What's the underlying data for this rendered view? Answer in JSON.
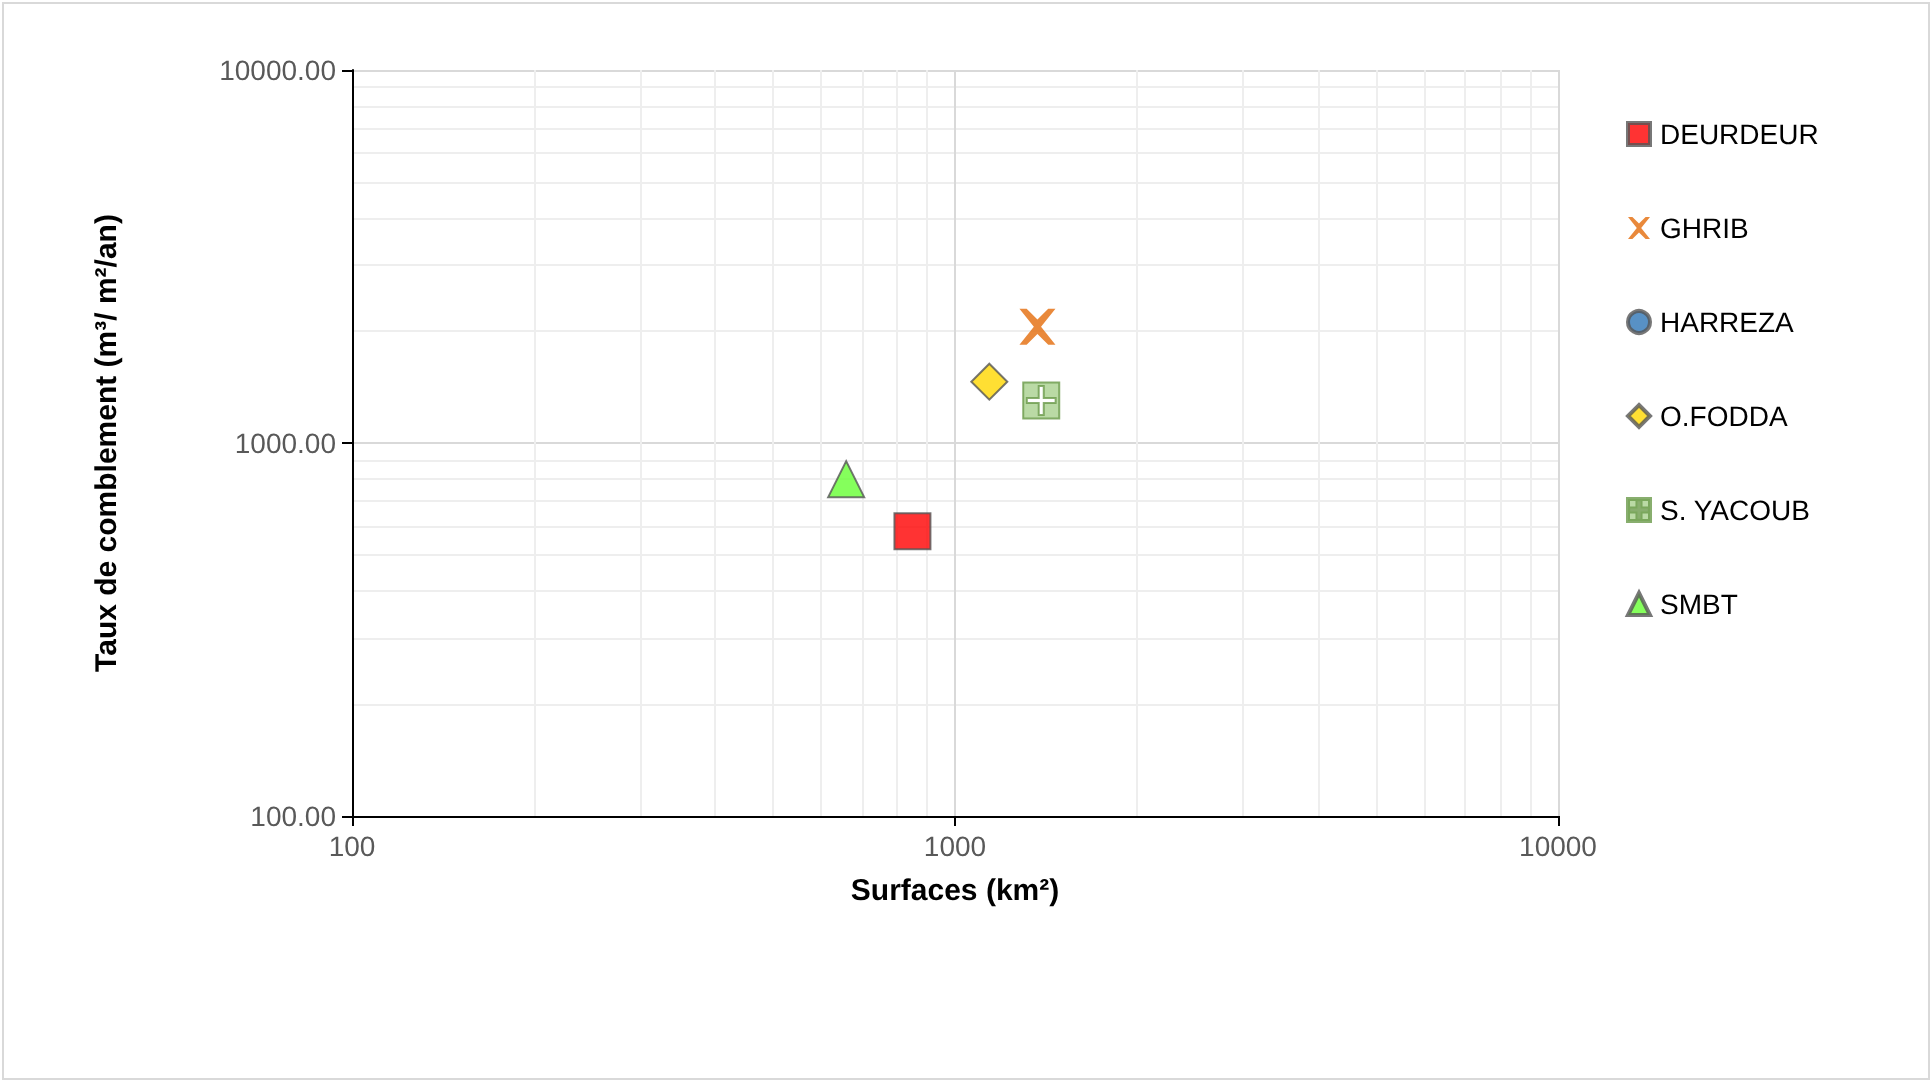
{
  "chart_data": {
    "type": "scatter",
    "xlabel": "Surfaces (km²)",
    "ylabel": "Taux de comblement (m³/ m²/an)",
    "log": "xy",
    "grid": true,
    "legend": "right",
    "xlim": [
      100,
      10000
    ],
    "xticks": [
      100,
      1000,
      10000
    ],
    "ylim": [
      100,
      10000
    ],
    "yticks": [
      {
        "value": 100,
        "label": "100.00"
      },
      {
        "value": 1000,
        "label": "1000.00"
      },
      {
        "value": 10000,
        "label": "10000.00"
      }
    ],
    "series": [
      {
        "name": "DEURDEUR",
        "color": "#ff0000",
        "marker": "square",
        "x": [
          850
        ],
        "values": [
          580
        ]
      },
      {
        "name": "GHRIB",
        "color": "#e46c0a",
        "marker": "cross",
        "x": [
          1370
        ],
        "values": [
          2050
        ]
      },
      {
        "name": "HARREZA",
        "color": "#2e75b6",
        "marker": "circle",
        "x": [
          null
        ],
        "values": [
          null
        ]
      },
      {
        "name": "O.FODDA",
        "color": "#ffd700",
        "marker": "diamond",
        "x": [
          1140
        ],
        "values": [
          1460
        ]
      },
      {
        "name": "S. YACOUB",
        "color": "#a9d18e",
        "marker": "plus",
        "x": [
          1390
        ],
        "values": [
          1300
        ]
      },
      {
        "name": "SMBT",
        "color": "#66ff33",
        "marker": "triangle",
        "x": [
          660
        ],
        "values": [
          800
        ]
      }
    ]
  }
}
